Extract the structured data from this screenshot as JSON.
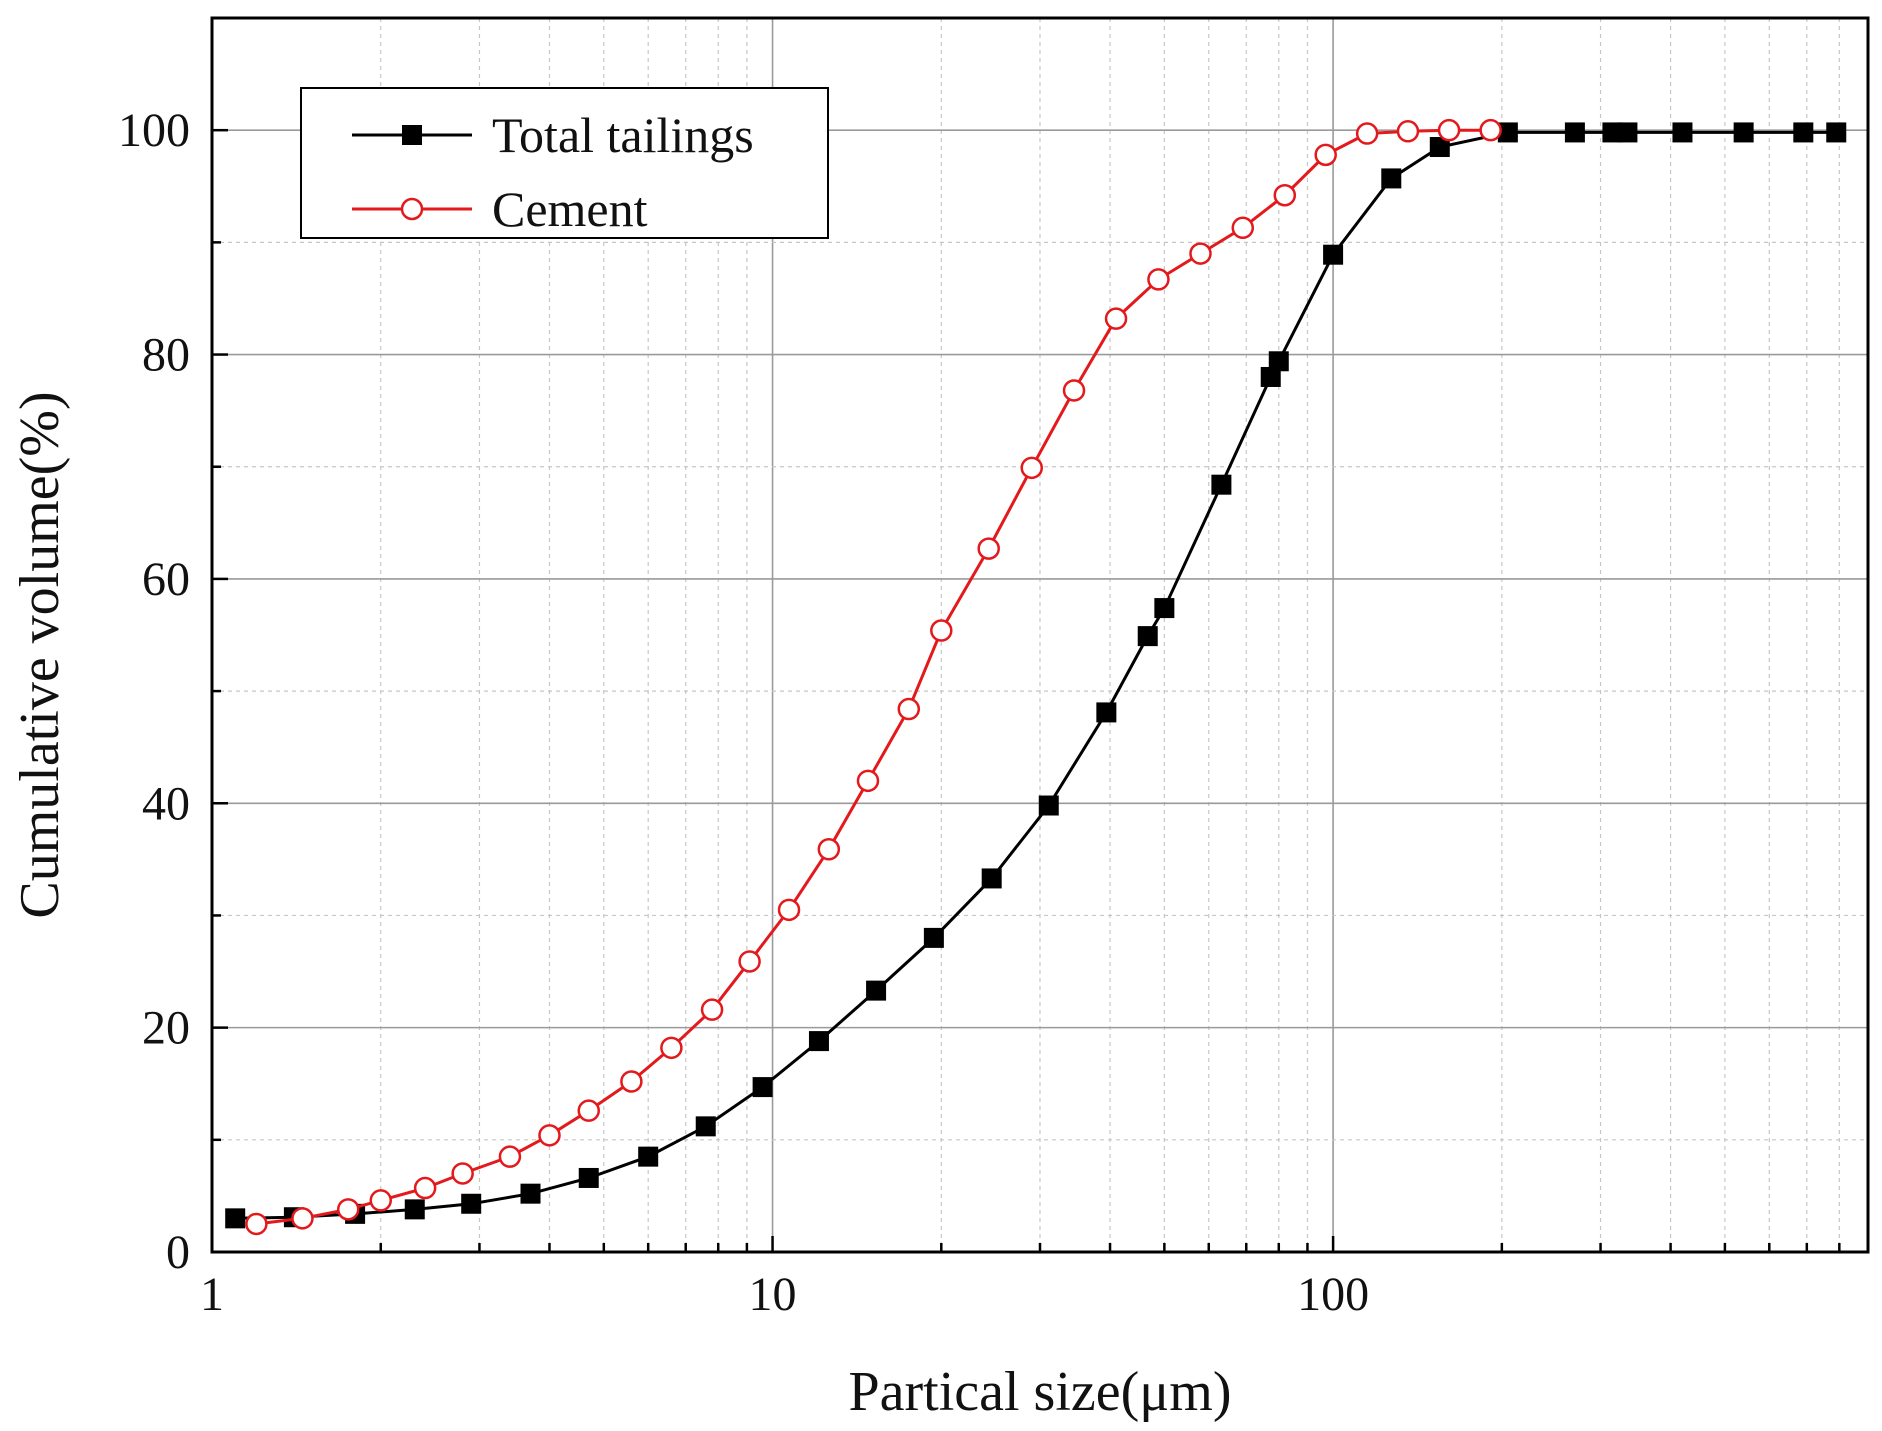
{
  "chart_data": {
    "type": "line",
    "xscale": "log",
    "xlabel": "Partical size(μm)",
    "ylabel": "Cumulative volume(%)",
    "xlim": [
      1,
      900
    ],
    "ylim": [
      0,
      110
    ],
    "xticks": [
      1,
      10,
      100
    ],
    "xtick_labels": [
      "1",
      "10",
      "100"
    ],
    "yticks": [
      0,
      20,
      40,
      60,
      80,
      100
    ],
    "ytick_labels": [
      "0",
      "20",
      "40",
      "60",
      "80",
      "100"
    ],
    "grid": true,
    "legend_position": "top-left",
    "series": [
      {
        "name": "Total tailings",
        "color": "#000000",
        "marker": "filled-square",
        "x": [
          1.1,
          1.4,
          1.8,
          2.3,
          2.9,
          3.7,
          4.7,
          6.0,
          7.6,
          9.6,
          12.1,
          15.3,
          19.4,
          24.6,
          31.1,
          39.4,
          46.7,
          50.0,
          63.2,
          77.4,
          80.0,
          100.0,
          127.0,
          155.0,
          205.0,
          270.0,
          315.0,
          335.0,
          420.0,
          540.0,
          690.0,
          790.0
        ],
        "y": [
          3.0,
          3.1,
          3.4,
          3.8,
          4.3,
          5.2,
          6.6,
          8.5,
          11.2,
          14.7,
          18.8,
          23.3,
          28.0,
          33.3,
          39.8,
          48.1,
          54.9,
          57.4,
          68.4,
          78.0,
          79.4,
          88.9,
          95.7,
          98.5,
          99.8,
          99.8,
          99.8,
          99.8,
          99.8,
          99.8,
          99.8,
          99.8
        ]
      },
      {
        "name": "Cement",
        "color": "#e3191c",
        "marker": "open-circle",
        "x": [
          1.2,
          1.45,
          1.75,
          2.0,
          2.4,
          2.8,
          3.4,
          4.0,
          4.7,
          5.6,
          6.6,
          7.8,
          9.1,
          10.7,
          12.6,
          14.8,
          17.5,
          20.0,
          24.3,
          29.0,
          34.5,
          41.0,
          48.8,
          58.0,
          69.0,
          82.0,
          97.0,
          115.0,
          136.0,
          161.0,
          191.0
        ],
        "y": [
          2.5,
          3.0,
          3.8,
          4.6,
          5.7,
          7.0,
          8.5,
          10.4,
          12.6,
          15.2,
          18.2,
          21.6,
          25.9,
          30.5,
          35.9,
          42.0,
          48.4,
          55.4,
          62.7,
          69.9,
          76.8,
          83.2,
          86.7,
          89.0,
          91.3,
          94.2,
          97.8,
          99.7,
          99.9,
          100.0,
          100.0
        ]
      }
    ]
  }
}
